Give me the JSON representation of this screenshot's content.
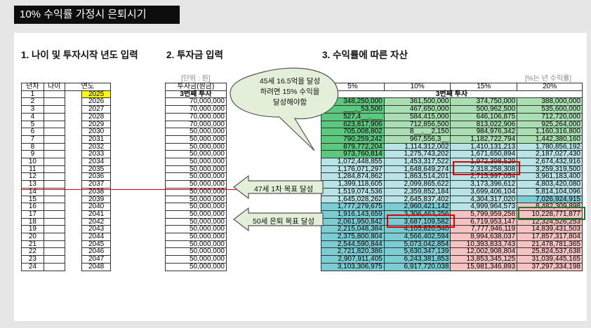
{
  "banner": "10% 수익률 가정시 은퇴시기",
  "sections": {
    "s1": "1. 나이 및 투자시작 년도 입력",
    "s2": "2. 투자금 입력",
    "s3": "3. 수익률에 따른 자산"
  },
  "notes": {
    "unit": "[단위 : 원]",
    "rate": "[%는 년 수익률]"
  },
  "left_headers": [
    "년차",
    "나이",
    "연도"
  ],
  "amount_header": "투자금(원금)",
  "invest_title": "3번째 투자",
  "rate_headers": [
    "5%",
    "10%",
    "15%",
    "20%"
  ],
  "callouts": {
    "bubble": [
      "45세 16.5억을 달성",
      "하려면 15% 수익을",
      "달성해야함"
    ],
    "goal1": "47세 1차 목표 달성",
    "goal2": "50세 은퇴 목표 달성"
  },
  "rows": [
    {
      "n": "1",
      "year": "2025",
      "amount": "",
      "v": [
        "",
        "",
        "",
        ""
      ]
    },
    {
      "n": "2",
      "year": "2026",
      "amount": "70,000,000",
      "v": [
        "348,250,000",
        "361,500,000",
        "374,750,000",
        "388,000,000"
      ]
    },
    {
      "n": "3",
      "year": "2027",
      "amount": "70,000,000",
      "v": [
        "___,_53,500",
        "467,650,000",
        "500,962,500",
        "535,600,000"
      ]
    },
    {
      "n": "4",
      "year": "2028",
      "amount": "70,000,000",
      "v": [
        "527,4__,___",
        "584,415,000",
        "646,106,875",
        "712,720,000"
      ]
    },
    {
      "n": "5",
      "year": "2029",
      "amount": "70,000,000",
      "v": [
        "623,817,906",
        "712,856,500",
        "813,022,906",
        "925,264,000"
      ]
    },
    {
      "n": "6",
      "year": "2030",
      "amount": "50,000,000",
      "v": [
        "705,008,802",
        "8__,__2,150",
        "984,976,342",
        "1,160,316,800"
      ]
    },
    {
      "n": "7",
      "year": "2031",
      "amount": "50,000,000",
      "v": [
        "790,259,242",
        "967,556,3__",
        "1,182,722,794",
        "1,442,380,160"
      ]
    },
    {
      "n": "8",
      "year": "2032",
      "amount": "50,000,000",
      "v": [
        "879,772,204",
        "1,114,312,002",
        "1,410,131,213",
        "1,780,856,192"
      ]
    },
    {
      "n": "9",
      "year": "2033",
      "amount": "50,000,000",
      "v": [
        "973,760,814",
        "1,275,743,202",
        "1,671,650,894",
        "2,187,027,430"
      ]
    },
    {
      "n": "10",
      "year": "2034",
      "amount": "50,000,000",
      "v": [
        "1,072,448,855",
        "1,453,317,522",
        "1,972,398,529",
        "2,674,432,916"
      ]
    },
    {
      "n": "11",
      "year": "2035",
      "amount": "50,000,000",
      "v": [
        "1,176,071,297",
        "1,648,649,274",
        "2,318,258,308",
        "3,259,319,500"
      ]
    },
    {
      "n": "12",
      "year": "2036",
      "amount": "50,000,000",
      "v": [
        "1,284,874,862",
        "1,863,514,201",
        "2,715,997,054",
        "3,961,183,400"
      ]
    },
    {
      "n": "13",
      "year": "2037",
      "amount": "50,000,000",
      "v": [
        "1,399,118,605",
        "2,099,865,622",
        "3,173,396,612",
        "4,803,420,080"
      ]
    },
    {
      "n": "14",
      "year": "2038",
      "amount": "50,000,000",
      "v": [
        "1,519,074,536",
        "2,359,852,184",
        "3,699,406,104",
        "5,814,104,096"
      ]
    },
    {
      "n": "15",
      "year": "2039",
      "amount": "50,000,000",
      "v": [
        "1,645,028,262",
        "2,645,837,402",
        "4,304,317,020",
        "7,026,924,915"
      ]
    },
    {
      "n": "16",
      "year": "2040",
      "amount": "50,000,000",
      "v": [
        "1,777,279,675",
        "2,960,421,142",
        "4,999,964,573",
        "8,482,309,898"
      ]
    },
    {
      "n": "17",
      "year": "2041",
      "amount": "50,000,000",
      "v": [
        "1,916,143,659",
        "3,306,463,256",
        "5,799,959,258",
        "10,228,771,877"
      ]
    },
    {
      "n": "18",
      "year": "2042",
      "amount": "50,000,000",
      "v": [
        "2,061,950,842",
        "3,687,109,582",
        "6,719,953,147",
        "12,324,526,253"
      ]
    },
    {
      "n": "19",
      "year": "2043",
      "amount": "50,000,000",
      "v": [
        "2,215,048,384",
        "4,105,820,540",
        "7,777,946,119",
        "14,839,431,503"
      ]
    },
    {
      "n": "20",
      "year": "2044",
      "amount": "50,000,000",
      "v": [
        "2,375,800,804",
        "4,566,402,594",
        "8,994,638,037",
        "17,857,317,804"
      ]
    },
    {
      "n": "21",
      "year": "2045",
      "amount": "50,000,000",
      "v": [
        "2,544,590,844",
        "5,073,042,854",
        "10,393,833,743",
        "21,478,781,365"
      ]
    },
    {
      "n": "22",
      "year": "2046",
      "amount": "50,000,000",
      "v": [
        "2,721,820,386",
        "5,630,347,139",
        "12,002,908,804",
        "25,824,537,638"
      ]
    },
    {
      "n": "23",
      "year": "2047",
      "amount": "50,000,000",
      "v": [
        "2,907,911,405",
        "6,243,381,853",
        "13,853,345,125",
        "31,039,445,165"
      ]
    },
    {
      "n": "24",
      "year": "2048",
      "amount": "50,000,000",
      "v": [
        "3,103,306,975",
        "6,917,720,038",
        "15,981,346,893",
        "37,297,334,198"
      ]
    }
  ],
  "colors": {
    "green_dark": "#5cc77f",
    "green_light": "#a9dfb3",
    "teal_light": "#b9e4e7",
    "teal_mid": "#7cccd3",
    "pink": "#f7c2c2",
    "bubble_fill": "#e3efd9",
    "accent_red": "#dd0000",
    "year_highlight": "#ffff00"
  }
}
